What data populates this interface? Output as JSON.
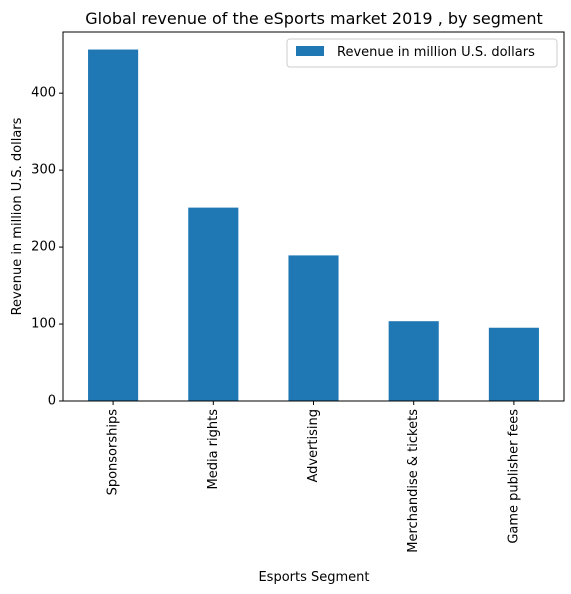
{
  "chart_data": {
    "type": "bar",
    "title": "Global revenue of the eSports market 2019 , by segment",
    "xlabel": "Esports Segment",
    "ylabel": "Revenue in million U.S. dollars",
    "categories": [
      "Sponsorships",
      "Media rights",
      "Advertising",
      "Merchandise & tickets",
      "Game publisher fees"
    ],
    "series": [
      {
        "name": "Revenue in million U.S. dollars",
        "values": [
          456.7,
          251.3,
          189.2,
          103.7,
          95.2
        ]
      }
    ],
    "ylim": [
      0,
      479.5
    ],
    "yticks": [
      0,
      100,
      200,
      300,
      400
    ],
    "grid": false,
    "legend_position": "top-right",
    "colors": {
      "bar": "#1f77b4"
    }
  }
}
